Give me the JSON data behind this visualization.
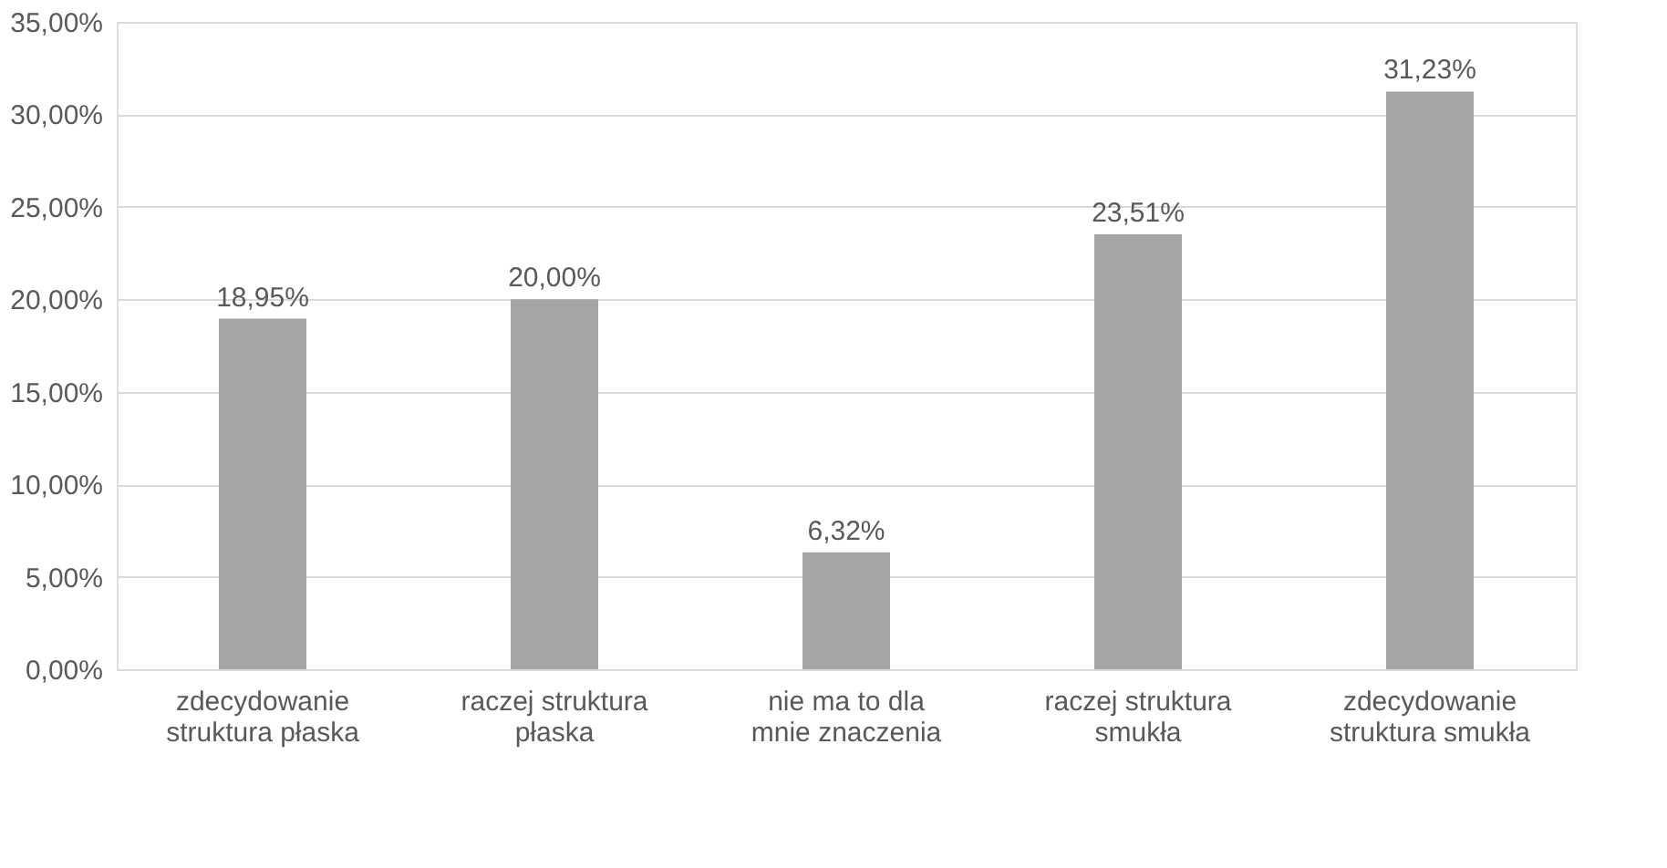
{
  "chart_data": {
    "type": "bar",
    "categories": [
      "zdecydowanie struktura płaska",
      "raczej struktura płaska",
      "nie ma to dla mnie znaczenia",
      "raczej struktura smukła",
      "zdecydowanie struktura smukła"
    ],
    "values": [
      18.95,
      20.0,
      6.32,
      23.51,
      31.23
    ],
    "value_labels": [
      "18,95%",
      "20,00%",
      "6,32%",
      "23,51%",
      "31,23%"
    ],
    "color": "#a5a5a5",
    "ylim": [
      0,
      35
    ],
    "yticks": [
      {
        "value": 0,
        "label": "0,00%"
      },
      {
        "value": 5,
        "label": "5,00%"
      },
      {
        "value": 10,
        "label": "10,00%"
      },
      {
        "value": 15,
        "label": "15,00%"
      },
      {
        "value": 20,
        "label": "20,00%"
      },
      {
        "value": 25,
        "label": "25,00%"
      },
      {
        "value": 30,
        "label": "30,00%"
      },
      {
        "value": 35,
        "label": "35,00%"
      }
    ],
    "grid": "y"
  }
}
